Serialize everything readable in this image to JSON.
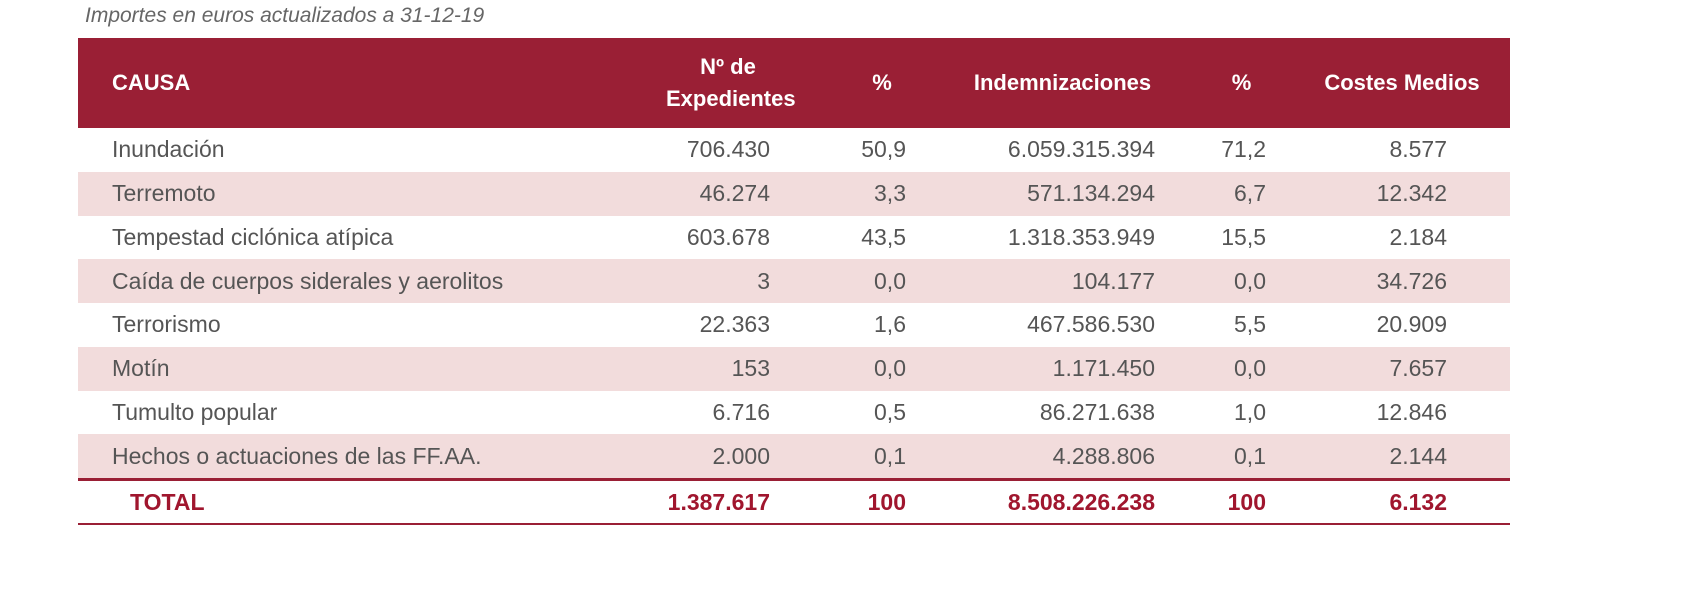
{
  "subtitle": "Importes en euros actualizados a 31-12-19",
  "colors": {
    "header_bg": "#9a1f35",
    "alt_row_bg": "#f2dcdc",
    "total_text": "#a0162e"
  },
  "headers": [
    "CAUSA",
    "Nº de Expedientes",
    "%",
    "Indemnizaciones",
    "%",
    "Costes Medios"
  ],
  "rows": [
    [
      "Inundación",
      "706.430",
      "50,9",
      "6.059.315.394",
      "71,2",
      "8.577"
    ],
    [
      "Terremoto",
      "46.274",
      "3,3",
      "571.134.294",
      "6,7",
      "12.342"
    ],
    [
      "Tempestad ciclónica atípica",
      "603.678",
      "43,5",
      "1.318.353.949",
      "15,5",
      "2.184"
    ],
    [
      "Caída de cuerpos siderales y aerolitos",
      "3",
      "0,0",
      "104.177",
      "0,0",
      "34.726"
    ],
    [
      "Terrorismo",
      "22.363",
      "1,6",
      "467.586.530",
      "5,5",
      "20.909"
    ],
    [
      "Motín",
      "153",
      "0,0",
      "1.171.450",
      "0,0",
      "7.657"
    ],
    [
      "Tumulto popular",
      "6.716",
      "0,5",
      "86.271.638",
      "1,0",
      "12.846"
    ],
    [
      "Hechos o actuaciones de las FF.AA.",
      "2.000",
      "0,1",
      "4.288.806",
      "0,1",
      "2.144"
    ]
  ],
  "total": [
    "TOTAL",
    "1.387.617",
    "100",
    "8.508.226.238",
    "100",
    "6.132"
  ]
}
